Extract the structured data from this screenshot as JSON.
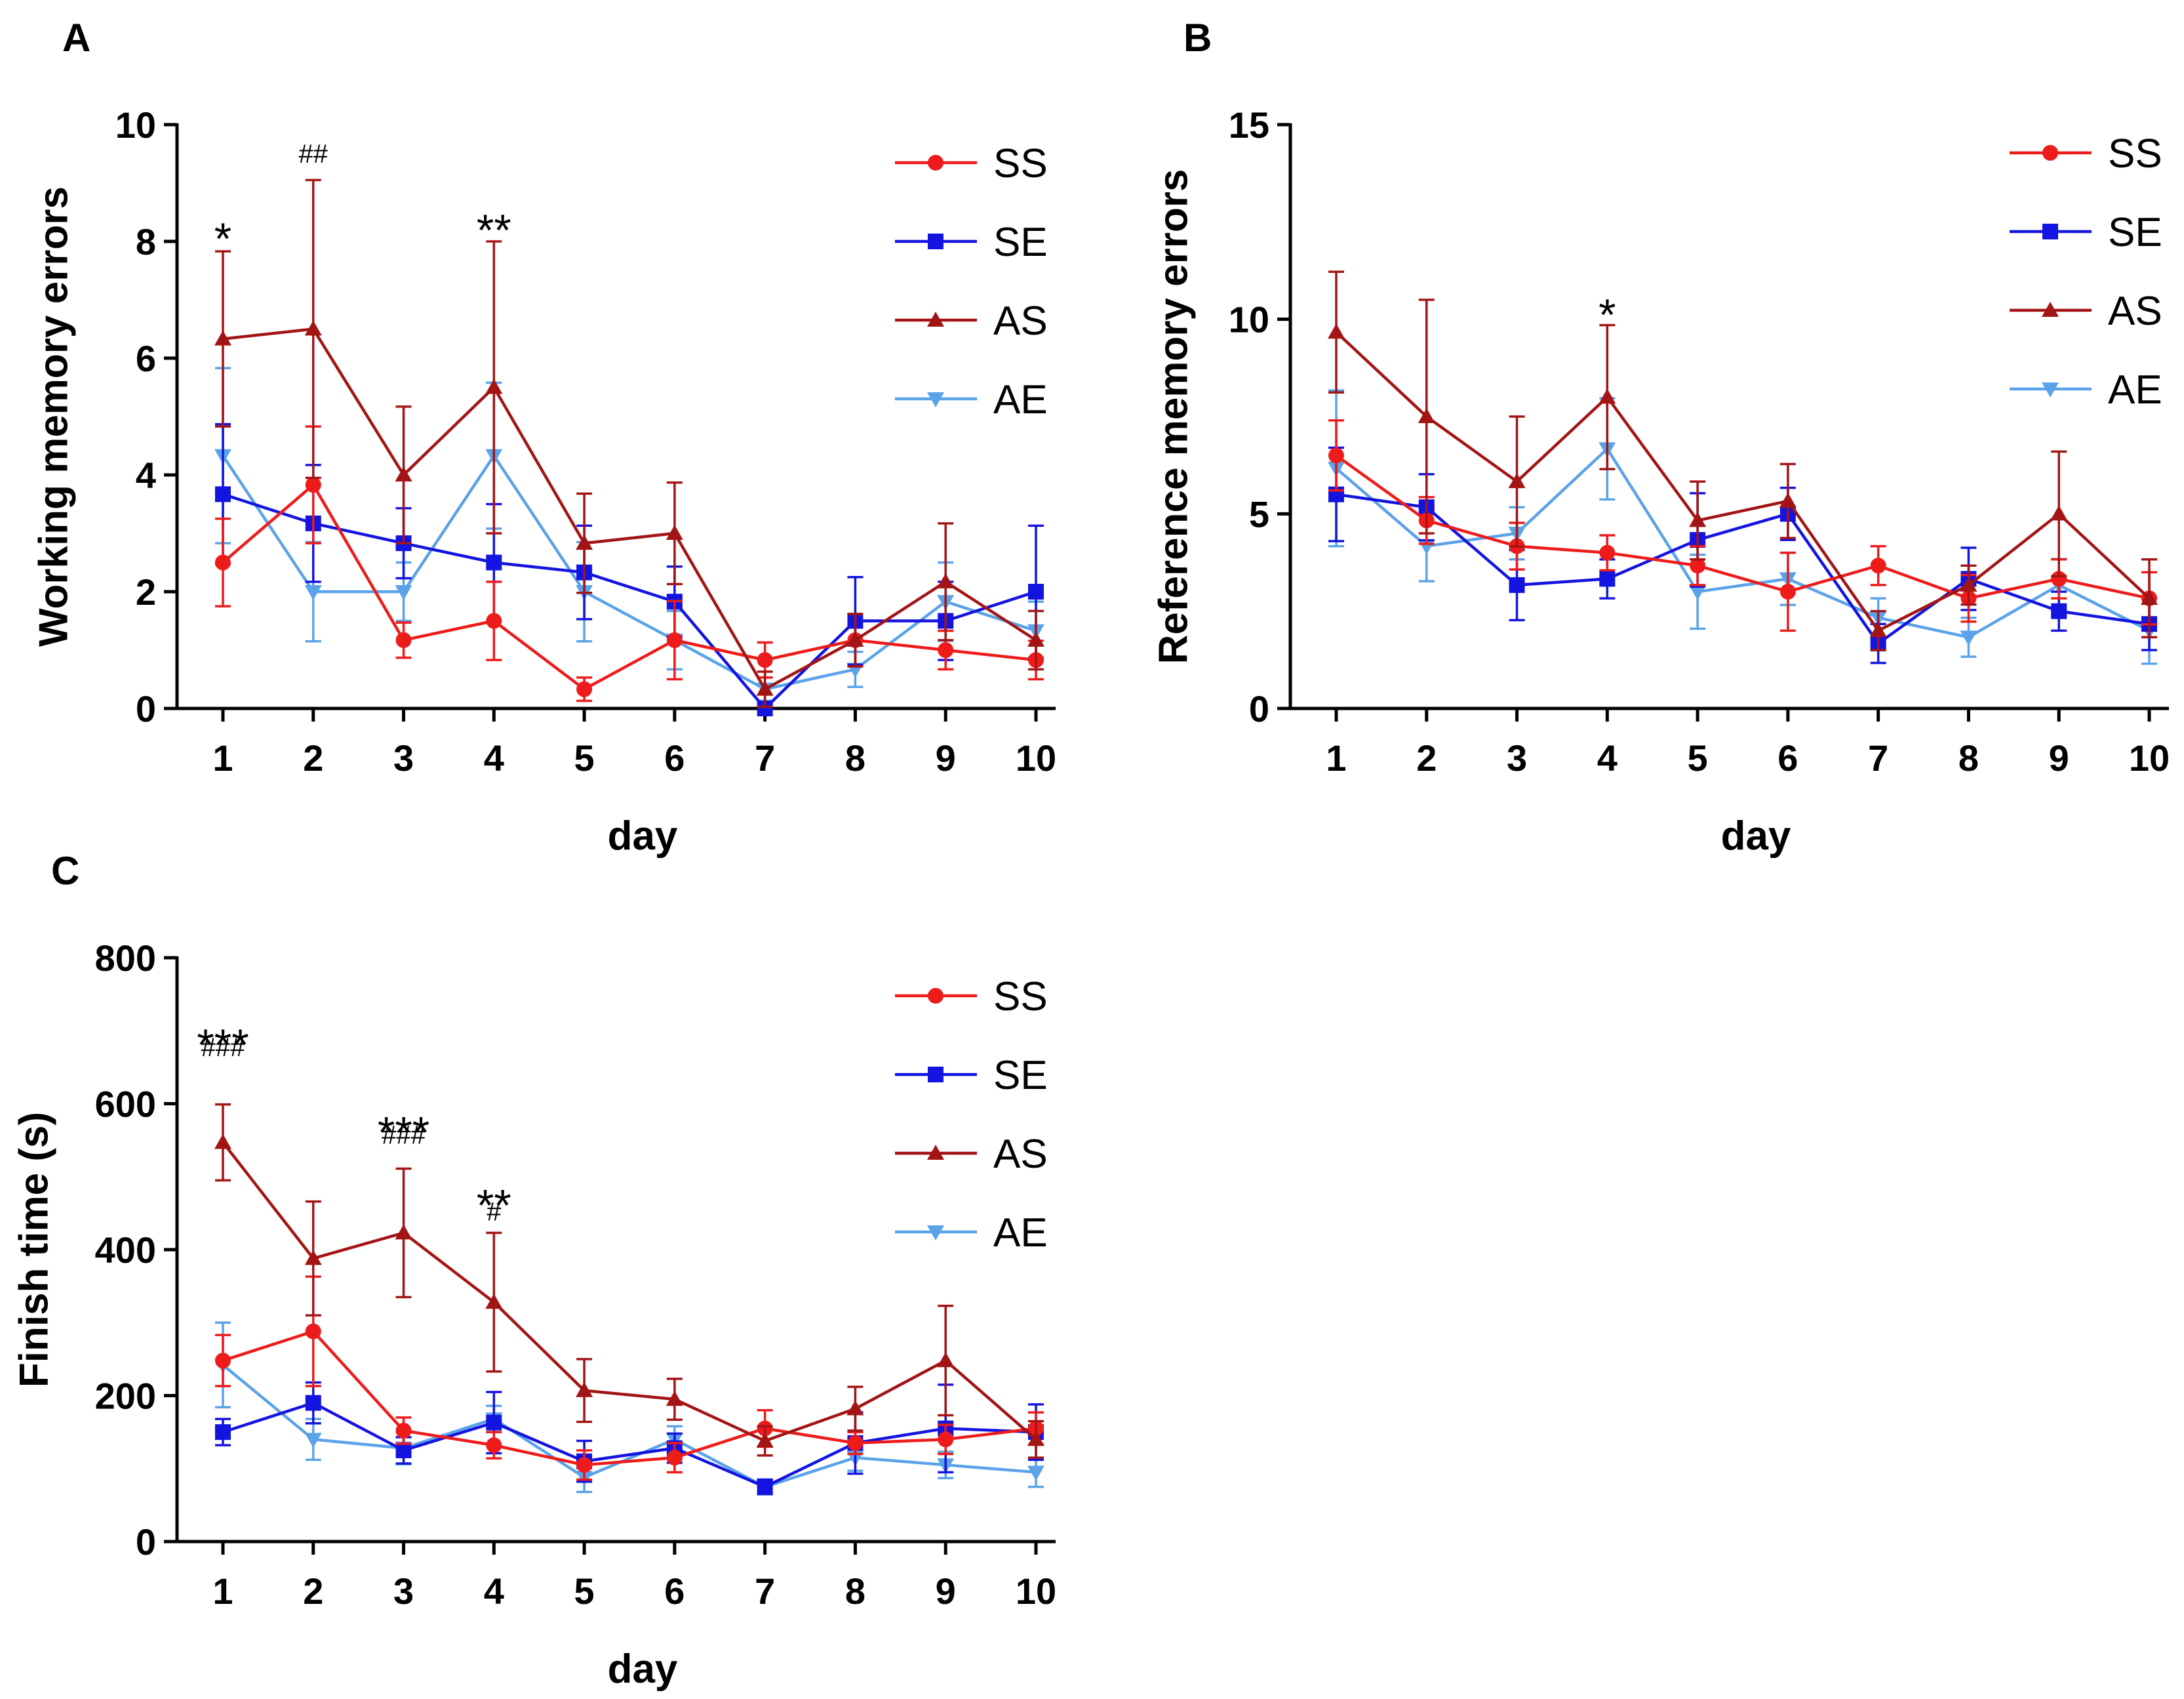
{
  "series_styles": [
    {
      "name": "SS",
      "color": "#ee1b1b",
      "marker": "circle"
    },
    {
      "name": "SE",
      "color": "#1414e0",
      "marker": "square"
    },
    {
      "name": "AS",
      "color": "#a31515",
      "marker": "triangle-up"
    },
    {
      "name": "AE",
      "color": "#5ba3e8",
      "marker": "triangle-down"
    }
  ],
  "chart_data": [
    {
      "panel": "A",
      "type": "line",
      "xlabel": "day",
      "ylabel": "Working memory errors",
      "ylim": [
        0,
        10
      ],
      "yticks": [
        0,
        2,
        4,
        6,
        8,
        10
      ],
      "categories": [
        "1",
        "2",
        "3",
        "4",
        "5",
        "6",
        "7",
        "8",
        "9",
        "10"
      ],
      "legend": "top-right",
      "series": [
        {
          "name": "SS",
          "values": [
            2.5,
            3.83,
            1.17,
            1.5,
            0.33,
            1.17,
            0.83,
            1.17,
            1.0,
            0.83
          ],
          "err": [
            0.75,
            1.0,
            0.3,
            0.67,
            0.2,
            0.67,
            0.3,
            0.45,
            0.33,
            0.33
          ]
        },
        {
          "name": "SE",
          "values": [
            3.67,
            3.17,
            2.83,
            2.5,
            2.33,
            1.83,
            0.0,
            1.5,
            1.5,
            2.0
          ],
          "err": [
            1.2,
            1.0,
            0.6,
            1.0,
            0.8,
            0.6,
            0.0,
            0.75,
            0.67,
            1.13
          ]
        },
        {
          "name": "AS",
          "values": [
            6.33,
            6.5,
            4.0,
            5.5,
            2.83,
            3.0,
            0.33,
            1.17,
            2.17,
            1.17
          ],
          "err": [
            1.5,
            2.55,
            1.17,
            2.5,
            0.85,
            0.87,
            0.3,
            0.45,
            1.0,
            0.5
          ]
        },
        {
          "name": "AE",
          "values": [
            4.33,
            2.0,
            2.0,
            4.33,
            2.0,
            1.17,
            0.33,
            0.67,
            1.83,
            1.33
          ],
          "err": [
            1.5,
            0.85,
            0.5,
            1.25,
            0.85,
            0.5,
            0.2,
            0.3,
            0.67,
            0.5
          ]
        }
      ],
      "annotations": [
        {
          "category": "1",
          "text": "*",
          "y": 8.1,
          "style": "star"
        },
        {
          "category": "2",
          "text": "##",
          "y": 9.35,
          "style": "hash"
        },
        {
          "category": "4",
          "text": "**",
          "y": 8.25,
          "style": "star"
        }
      ]
    },
    {
      "panel": "B",
      "type": "line",
      "xlabel": "day",
      "ylabel": "Reference memory errors",
      "ylim": [
        0,
        15
      ],
      "yticks": [
        0,
        5,
        10,
        15
      ],
      "categories": [
        "1",
        "2",
        "3",
        "4",
        "5",
        "6",
        "7",
        "8",
        "9",
        "10"
      ],
      "legend": "top-right",
      "series": [
        {
          "name": "SS",
          "values": [
            6.5,
            4.83,
            4.17,
            4.0,
            3.67,
            3.0,
            3.67,
            2.83,
            3.33,
            2.83
          ],
          "err": [
            0.9,
            0.6,
            0.6,
            0.45,
            0.5,
            1.0,
            0.5,
            0.6,
            0.5,
            0.67
          ]
        },
        {
          "name": "SE",
          "values": [
            5.5,
            5.17,
            3.17,
            3.33,
            4.33,
            5.0,
            1.67,
            3.33,
            2.5,
            2.17
          ],
          "err": [
            1.2,
            0.85,
            0.9,
            0.5,
            1.2,
            0.67,
            0.5,
            0.8,
            0.5,
            0.67
          ]
        },
        {
          "name": "AS",
          "values": [
            9.67,
            7.5,
            5.83,
            8.0,
            4.83,
            5.33,
            2.0,
            3.17,
            5.0,
            2.83
          ],
          "err": [
            1.55,
            3.0,
            1.67,
            1.85,
            1.0,
            0.95,
            0.5,
            0.5,
            1.6,
            1.0
          ]
        },
        {
          "name": "AE",
          "values": [
            6.17,
            4.17,
            4.5,
            6.67,
            3.0,
            3.33,
            2.33,
            1.83,
            3.17,
            2.0
          ],
          "err": [
            2.0,
            0.9,
            0.67,
            1.3,
            0.95,
            0.67,
            0.5,
            0.5,
            0.67,
            0.85
          ]
        }
      ],
      "annotations": [
        {
          "category": "4",
          "text": "*",
          "y": 10.2,
          "style": "star"
        }
      ]
    },
    {
      "panel": "C",
      "type": "line",
      "xlabel": "day",
      "ylabel": "Finish time (s)",
      "ylim": [
        0,
        800
      ],
      "yticks": [
        0,
        200,
        400,
        600,
        800
      ],
      "categories": [
        "1",
        "2",
        "3",
        "4",
        "5",
        "6",
        "7",
        "8",
        "9",
        "10"
      ],
      "legend": "top-right",
      "series": [
        {
          "name": "SS",
          "values": [
            248,
            288,
            152,
            132,
            105,
            115,
            155,
            135,
            140,
            155
          ],
          "err": [
            35,
            75,
            18,
            18,
            20,
            20,
            25,
            15,
            20,
            22
          ]
        },
        {
          "name": "SE",
          "values": [
            150,
            190,
            125,
            163,
            110,
            128,
            75,
            135,
            155,
            150
          ],
          "err": [
            18,
            28,
            18,
            42,
            28,
            20,
            10,
            42,
            60,
            38
          ]
        },
        {
          "name": "AS",
          "values": [
            547,
            388,
            423,
            328,
            207,
            195,
            138,
            182,
            248,
            140
          ],
          "err": [
            52,
            78,
            88,
            95,
            43,
            28,
            20,
            30,
            75,
            25
          ]
        },
        {
          "name": "AE",
          "values": [
            242,
            140,
            128,
            168,
            88,
            140,
            75,
            115,
            105,
            95
          ],
          "err": [
            58,
            28,
            22,
            18,
            20,
            18,
            10,
            18,
            18,
            20
          ]
        }
      ],
      "annotations": [
        {
          "category": "1",
          "text": "***",
          "y": 685,
          "style": "star"
        },
        {
          "category": "1",
          "text": "###",
          "y": 665,
          "style": "hash"
        },
        {
          "category": "3",
          "text": "***",
          "y": 565,
          "style": "star"
        },
        {
          "category": "3",
          "text": "###",
          "y": 545,
          "style": "hash"
        },
        {
          "category": "4",
          "text": "**",
          "y": 465,
          "style": "star"
        },
        {
          "category": "4",
          "text": "#",
          "y": 440,
          "style": "hash"
        }
      ]
    }
  ]
}
